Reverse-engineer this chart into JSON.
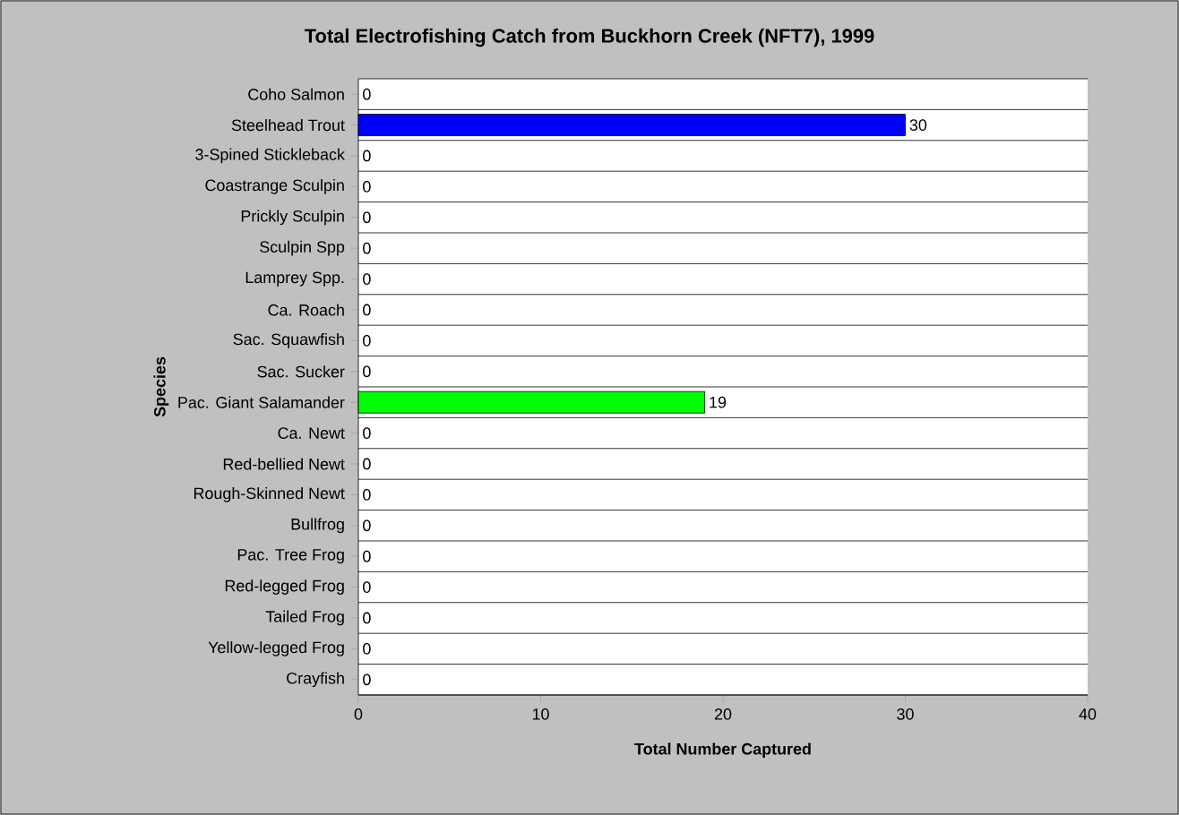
{
  "chart_data": {
    "type": "bar",
    "orientation": "horizontal",
    "title": "Total Electrofishing Catch from Buckhorn Creek (NFT7), 1999",
    "xlabel": "Total Number Captured",
    "ylabel": "Species",
    "categories": [
      "Coho Salmon",
      "Steelhead Trout",
      "3-Spined Stickleback",
      "Coastrange Sculpin",
      "Prickly Sculpin",
      "Sculpin Spp",
      "Lamprey Spp.",
      "Ca. Roach",
      "Sac. Squawfish",
      "Sac. Sucker",
      "Pac. Giant Salamander",
      "Ca. Newt",
      "Red-bellied Newt",
      "Rough-Skinned Newt",
      "Bullfrog",
      "Pac. Tree Frog",
      "Red-legged Frog",
      "Tailed Frog",
      "Yellow-legged Frog",
      "Crayfish"
    ],
    "values": [
      0,
      30,
      0,
      0,
      0,
      0,
      0,
      0,
      0,
      0,
      19,
      0,
      0,
      0,
      0,
      0,
      0,
      0,
      0,
      0
    ],
    "colors": [
      null,
      "#0000ff",
      null,
      null,
      null,
      null,
      null,
      null,
      null,
      null,
      "#00ff00",
      null,
      null,
      null,
      null,
      null,
      null,
      null,
      null,
      null
    ],
    "xlim": [
      0,
      40
    ],
    "xticks": [
      0,
      10,
      20,
      30,
      40
    ],
    "grid": "y",
    "data_labels": true
  }
}
